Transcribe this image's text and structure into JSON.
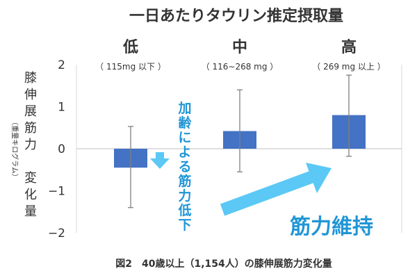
{
  "chart_data": {
    "type": "bar",
    "title": "一日あたりタウリン推定摂取量",
    "caption": "図2　40歳以上（1,154人）の膝伸展筋力変化量",
    "categories": [
      "低",
      "中",
      "高"
    ],
    "category_ranges": [
      "（ 115mg 以下 ）",
      "（ 116∼268 mg ）",
      "（ 269 mg 以上 ）"
    ],
    "values": [
      -0.45,
      0.42,
      0.8
    ],
    "error_low": [
      -1.4,
      -0.55,
      -0.18
    ],
    "error_high": [
      0.53,
      1.4,
      1.75
    ],
    "ylim": [
      -2,
      2
    ],
    "yticks": [
      -2,
      -1,
      0,
      1,
      2
    ],
    "ytick_labels": [
      "−2",
      "−1",
      "0",
      "1",
      "2"
    ],
    "ylabel_main": "膝伸展筋力変化量",
    "ylabel_unit": "（重量キログラム）",
    "annotations": {
      "decline": "加齢による筋力低下",
      "maintain": "筋力維持"
    },
    "colors": {
      "bar": "#4472c4",
      "error": "#7f7f7f",
      "accent": "#2196d6",
      "arrow": "#5bc8f5"
    }
  }
}
